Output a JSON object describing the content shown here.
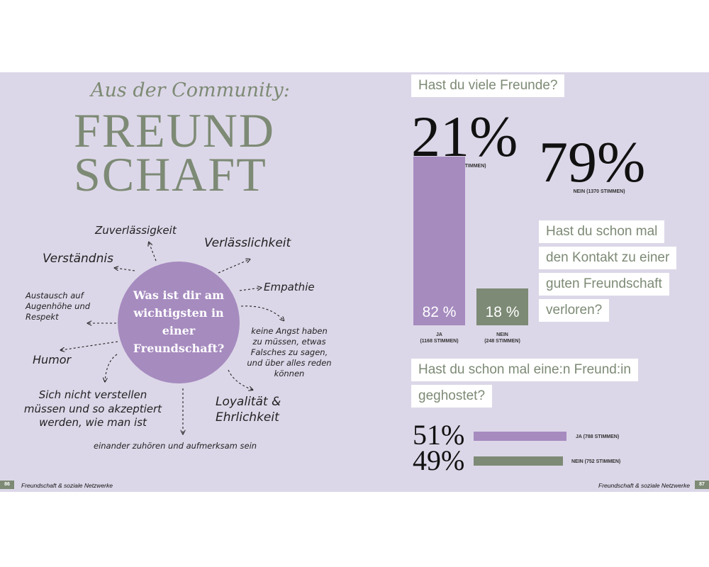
{
  "left_page": {
    "subtitle": "Aus der Community:",
    "title_line1": "FREUND",
    "title_line2": "SCHAFT",
    "center_question": "Was ist dir am wichtigsten in einer Freundschaft?",
    "answers": {
      "zuverlaessigkeit": "Zuverlässigkeit",
      "verlaesslichkeit": "Verlässlichkeit",
      "verstaendnis": "Verständnis",
      "empathie": "Empathie",
      "austausch": "Austausch auf Augenhöhe und Respekt",
      "keine_angst": "keine Angst haben zu müssen, etwas Falsches zu sagen, und über alles reden können",
      "humor": "Humor",
      "nicht_verstellen": "Sich nicht verstellen müssen und so akzeptiert werden, wie man ist",
      "loyalitaet": "Loyalität & Ehrlichkeit",
      "zuhoeren": "einander zuhören und aufmerksam sein"
    },
    "footer_text": "Freundschaft & soziale Netzwerke",
    "page_number": "86"
  },
  "right_page": {
    "q1": {
      "question": "Hast du viele Freunde?",
      "ja_pct": "21%",
      "ja_caption": "JA (356 STIMMEN)",
      "nein_pct": "79%",
      "nein_caption": "NEIN (1370 STIMMEN)"
    },
    "q2": {
      "question_lines": [
        "Hast du schon mal",
        "den Kontakt zu einer",
        "guten Freundschaft",
        "verloren?"
      ],
      "ja_label": "82 %",
      "ja_caption_1": "JA",
      "ja_caption_2": "(1168 STIMMEN)",
      "nein_label": "18 %",
      "nein_caption_1": "NEIN",
      "nein_caption_2": "(248 STIMMEN)"
    },
    "q3": {
      "question_lines": [
        "Hast du schon mal eine:n Freund:in",
        "geghostet?"
      ],
      "ja_pct": "51%",
      "ja_caption": "JA (788 STIMMEN)",
      "nein_pct": "49%",
      "nein_caption": "NEIN (752 STIMMEN)"
    },
    "footer_text": "Freundschaft & soziale Netzwerke",
    "page_number": "87"
  },
  "chart_data": [
    {
      "type": "bar",
      "title": "Hast du schon mal den Kontakt zu einer guten Freundschaft verloren?",
      "categories": [
        "JA",
        "NEIN"
      ],
      "values": [
        82,
        18
      ],
      "votes": [
        1168,
        248
      ]
    },
    {
      "type": "bar",
      "title": "Hast du schon mal eine:n Freund:in geghostet?",
      "categories": [
        "JA",
        "NEIN"
      ],
      "values": [
        51,
        49
      ],
      "votes": [
        788,
        752
      ]
    },
    {
      "type": "table",
      "title": "Hast du viele Freunde?",
      "categories": [
        "JA",
        "NEIN"
      ],
      "values": [
        21,
        79
      ],
      "votes": [
        356,
        1370
      ]
    }
  ],
  "colors": {
    "background": "#dcd7e8",
    "purple": "#a68bbf",
    "green": "#7d8a75"
  }
}
